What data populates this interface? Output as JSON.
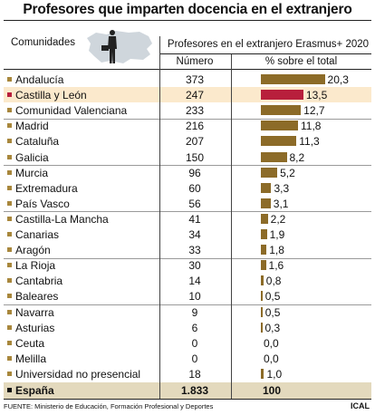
{
  "chart_data": {
    "type": "bar",
    "title": "Profesores que imparten docencia en el extranjero",
    "col_region": "Comunidades",
    "col_group": "Profesores en el extranjero Erasmus+ 2020",
    "col_number": "Número",
    "col_pct": "% sobre el total",
    "categories": [
      "Andalucía",
      "Castilla y León",
      "Comunidad Valenciana",
      "Madrid",
      "Cataluña",
      "Galicia",
      "Murcia",
      "Extremadura",
      "País Vasco",
      "Castilla-La Mancha",
      "Canarias",
      "Aragón",
      "La Rioja",
      "Cantabria",
      "Baleares",
      "Navarra",
      "Asturias",
      "Ceuta",
      "Melilla",
      "Universidad no presencial"
    ],
    "numbers": [
      "373",
      "247",
      "233",
      "216",
      "207",
      "150",
      "96",
      "60",
      "56",
      "41",
      "34",
      "33",
      "30",
      "14",
      "10",
      "9",
      "6",
      "0",
      "0",
      "18"
    ],
    "pct_labels": [
      "20,3",
      "13,5",
      "12,7",
      "11,8",
      "11,3",
      "8,2",
      "5,2",
      "3,3",
      "3,1",
      "2,2",
      "1,9",
      "1,8",
      "1,6",
      "0,8",
      "0,5",
      "0,5",
      "0,3",
      "0,0",
      "0,0",
      "1,0"
    ],
    "values": [
      20.3,
      13.5,
      12.7,
      11.8,
      11.3,
      8.2,
      5.2,
      3.3,
      3.1,
      2.2,
      1.9,
      1.8,
      1.6,
      0.8,
      0.5,
      0.5,
      0.3,
      0.0,
      0.0,
      1.0
    ],
    "highlight": "Castilla y León",
    "total": {
      "label": "España",
      "number": "1.833",
      "pct": "100"
    },
    "xlim": [
      0,
      21
    ],
    "colors": {
      "bar": "#8c6b28",
      "highlight_bar": "#b81f3c",
      "highlight_row": "#fbe9cc",
      "total_row": "#e3d9bd",
      "marker": "#a8873c"
    }
  },
  "footer": "FUENTE: Ministerio de Educación, Formación Profesional y Deportes",
  "credit": "ICAL",
  "icons": {
    "map": "castilla-leon-map-icon",
    "person": "teacher-silhouette-icon"
  }
}
